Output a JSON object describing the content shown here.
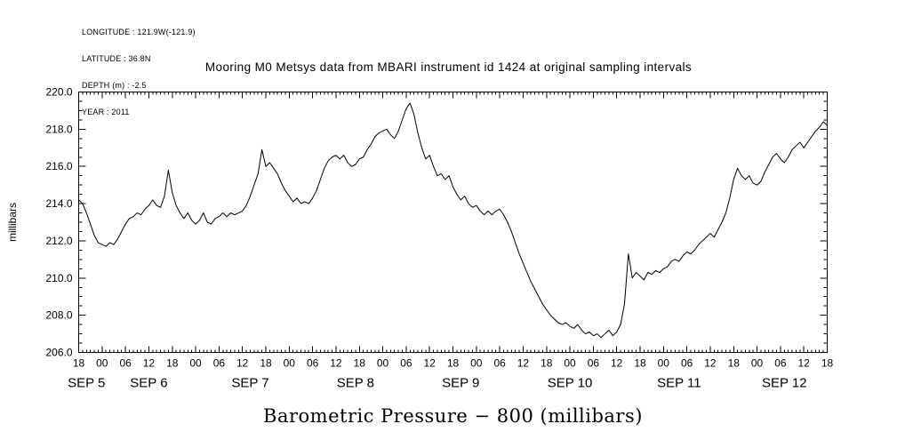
{
  "header": {
    "lines": [
      "LONGITUDE : 121.9W(-121.9)",
      "LATITUDE : 36.8N",
      "DEPTH (m) : -2.5",
      "YEAR : 2011"
    ]
  },
  "chart_data": {
    "type": "line",
    "title": "Mooring M0 Metsys data from MBARI instrument id 1424 at original sampling intervals",
    "xlabel": "Barometric Pressure − 800 (millibars)",
    "ylabel": "millibars",
    "background": "#ffffff",
    "line_color": "#000000",
    "grid": false,
    "legend": null,
    "ylim": [
      206.0,
      220.0
    ],
    "y_major_ticks": [
      {
        "v": 206.0,
        "label": "206.0"
      },
      {
        "v": 208.0,
        "label": "208.0"
      },
      {
        "v": 210.0,
        "label": "210.0"
      },
      {
        "v": 212.0,
        "label": "212.0"
      },
      {
        "v": 214.0,
        "label": "214.0"
      },
      {
        "v": 216.0,
        "label": "216.0"
      },
      {
        "v": 218.0,
        "label": "218.0"
      },
      {
        "v": 220.0,
        "label": "220.0"
      }
    ],
    "y_minor_step": 0.5,
    "x_axis": {
      "start": "Sep 4 18:00",
      "end": "Sep 12 18:00",
      "hours_total": 192,
      "major_tick_every_hours": 6,
      "minor_tick_every_hours": 1
    },
    "x_hour_tick_labels": [
      "18",
      "00",
      "06",
      "12",
      "18",
      "00",
      "06",
      "12",
      "18",
      "00",
      "06",
      "12",
      "18",
      "00",
      "06",
      "12",
      "18",
      "00",
      "06",
      "12",
      "18",
      "00",
      "06",
      "12",
      "18",
      "00",
      "06",
      "12",
      "18",
      "00",
      "06",
      "12",
      "18"
    ],
    "x_date_labels": [
      {
        "label": "SEP 5",
        "at_hour": 2
      },
      {
        "label": "SEP 6",
        "at_hour": 18
      },
      {
        "label": "SEP 7",
        "at_hour": 44
      },
      {
        "label": "SEP 8",
        "at_hour": 71
      },
      {
        "label": "SEP 9",
        "at_hour": 98
      },
      {
        "label": "SEP 10",
        "at_hour": 126
      },
      {
        "label": "SEP 11",
        "at_hour": 154
      },
      {
        "label": "SEP 12",
        "at_hour": 181
      }
    ],
    "series": [
      {
        "name": "Barometric Pressure − 800",
        "units": "millibars",
        "x_unit": "hours since Sep 4 18:00",
        "x_step_hours": 1,
        "values": [
          214.2,
          214.0,
          213.5,
          212.9,
          212.3,
          211.9,
          211.8,
          211.7,
          211.9,
          211.8,
          212.1,
          212.5,
          212.9,
          213.2,
          213.3,
          213.5,
          213.4,
          213.7,
          213.9,
          214.2,
          213.9,
          213.8,
          214.4,
          215.8,
          214.6,
          213.9,
          213.5,
          213.2,
          213.5,
          213.1,
          212.9,
          213.1,
          213.5,
          213.0,
          212.9,
          213.2,
          213.3,
          213.5,
          213.3,
          213.5,
          213.4,
          213.5,
          213.6,
          213.9,
          214.4,
          215.0,
          215.6,
          216.9,
          216.0,
          216.2,
          215.9,
          215.6,
          215.1,
          214.7,
          214.4,
          214.1,
          214.3,
          214.0,
          214.1,
          214.0,
          214.3,
          214.7,
          215.3,
          215.9,
          216.3,
          216.5,
          216.6,
          216.4,
          216.6,
          216.2,
          216.0,
          216.1,
          216.4,
          216.5,
          216.9,
          217.2,
          217.6,
          217.8,
          217.9,
          218.0,
          217.7,
          217.5,
          217.9,
          218.5,
          219.1,
          219.4,
          218.8,
          217.8,
          217.0,
          216.4,
          216.6,
          216.0,
          215.5,
          215.6,
          215.3,
          215.5,
          214.9,
          214.5,
          214.2,
          214.4,
          214.0,
          213.8,
          213.9,
          213.6,
          213.4,
          213.6,
          213.4,
          213.6,
          213.7,
          213.4,
          213.0,
          212.5,
          211.9,
          211.3,
          210.8,
          210.3,
          209.8,
          209.4,
          209.0,
          208.6,
          208.3,
          208.0,
          207.8,
          207.6,
          207.5,
          207.6,
          207.4,
          207.3,
          207.5,
          207.2,
          207.0,
          207.1,
          206.9,
          207.0,
          206.8,
          207.0,
          207.2,
          206.9,
          207.1,
          207.5,
          208.6,
          211.3,
          210.0,
          210.3,
          210.1,
          209.9,
          210.3,
          210.2,
          210.4,
          210.3,
          210.5,
          210.6,
          210.9,
          211.0,
          210.9,
          211.2,
          211.4,
          211.3,
          211.5,
          211.8,
          212.0,
          212.2,
          212.4,
          212.2,
          212.6,
          213.0,
          213.5,
          214.3,
          215.3,
          215.9,
          215.5,
          215.3,
          215.5,
          215.1,
          215.0,
          215.2,
          215.7,
          216.1,
          216.5,
          216.7,
          216.4,
          216.2,
          216.5,
          216.9,
          217.1,
          217.3,
          217.0,
          217.3,
          217.6,
          217.9,
          218.1,
          218.4,
          218.2
        ]
      }
    ]
  }
}
